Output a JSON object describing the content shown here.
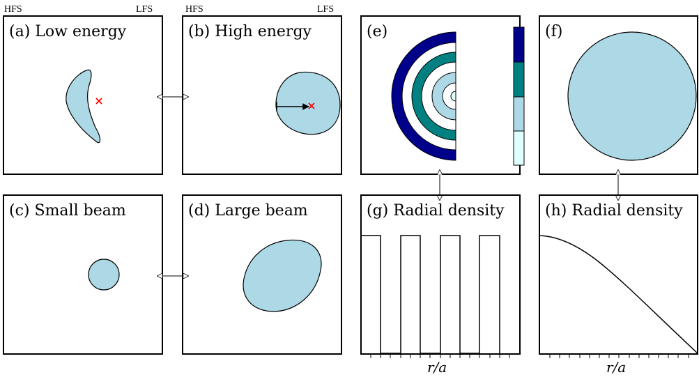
{
  "header": {
    "hfs_left": "HFS",
    "lfs_left": "LFS",
    "hfs_right": "HFS",
    "lfs_right": "LFS"
  },
  "panels": {
    "a": {
      "tag": "(a)",
      "title": "Low energy"
    },
    "b": {
      "tag": "(b)",
      "title": "High energy"
    },
    "c": {
      "tag": "(c)",
      "title": "Small beam"
    },
    "d": {
      "tag": "(d)",
      "title": "Large beam"
    },
    "e": {
      "tag": "(e)",
      "title": ""
    },
    "f": {
      "tag": "(f)",
      "title": ""
    },
    "g": {
      "tag": "(g)",
      "title": "Radial density"
    },
    "h": {
      "tag": "(h)",
      "title": "Radial density"
    }
  },
  "axes": {
    "g_xlabel": "r/a",
    "h_xlabel": "r/a"
  },
  "colors": {
    "fill_light": "#add8e6",
    "ring_dark": "#00008b",
    "ring_teal": "#008080",
    "ring_pale": "#e0ffff",
    "marker": "#ff0000",
    "outline": "#000000"
  }
}
